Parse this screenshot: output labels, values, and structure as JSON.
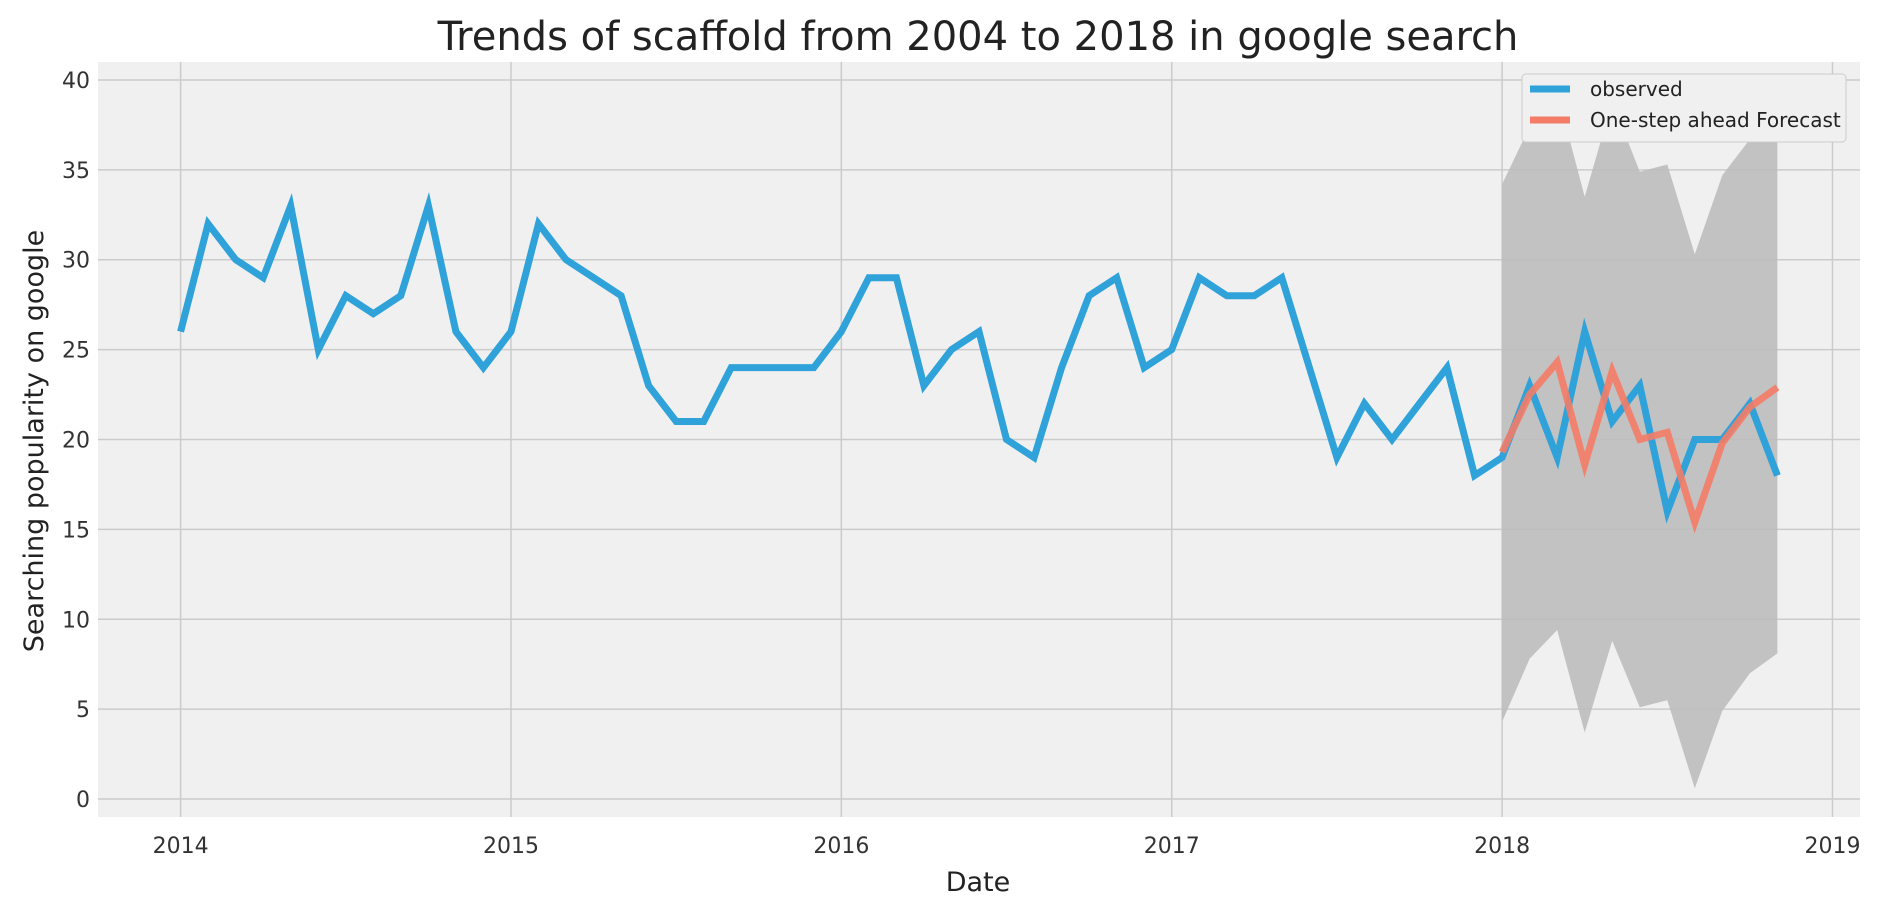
{
  "chart_data": {
    "type": "line",
    "title": "Trends of scaffold from 2004 to 2018 in google search",
    "xlabel": "Date",
    "ylabel": "Searching popularity on google",
    "xlim": [
      "2013-10",
      "2019-02"
    ],
    "ylim": [
      -1,
      41
    ],
    "x_ticks": [
      "2014",
      "2015",
      "2016",
      "2017",
      "2018",
      "2019"
    ],
    "y_ticks": [
      0,
      5,
      10,
      15,
      20,
      25,
      30,
      35,
      40
    ],
    "grid": true,
    "legend_position": "top-right",
    "colors": {
      "observed": "#30a2da",
      "forecast": "#f47c67",
      "confidence": "#bdbdbd",
      "background": "#f0f0f0",
      "grid": "#cbcbcb"
    },
    "series": [
      {
        "name": "observed",
        "x": [
          "2014-01",
          "2014-02",
          "2014-03",
          "2014-04",
          "2014-05",
          "2014-06",
          "2014-07",
          "2014-08",
          "2014-09",
          "2014-10",
          "2014-11",
          "2014-12",
          "2015-01",
          "2015-02",
          "2015-03",
          "2015-04",
          "2015-05",
          "2015-06",
          "2015-07",
          "2015-08",
          "2015-09",
          "2015-10",
          "2015-11",
          "2015-12",
          "2016-01",
          "2016-02",
          "2016-03",
          "2016-04",
          "2016-05",
          "2016-06",
          "2016-07",
          "2016-08",
          "2016-09",
          "2016-10",
          "2016-11",
          "2016-12",
          "2017-01",
          "2017-02",
          "2017-03",
          "2017-04",
          "2017-05",
          "2017-06",
          "2017-07",
          "2017-08",
          "2017-09",
          "2017-10",
          "2017-11",
          "2017-12",
          "2018-01",
          "2018-02",
          "2018-03",
          "2018-04",
          "2018-05",
          "2018-06",
          "2018-07",
          "2018-08",
          "2018-09",
          "2018-10",
          "2018-11"
        ],
        "values": [
          26,
          32,
          30,
          29,
          33,
          25,
          28,
          27,
          28,
          33,
          26,
          24,
          26,
          32,
          30,
          29,
          28,
          23,
          21,
          21,
          24,
          24,
          24,
          24,
          26,
          29,
          29,
          23,
          25,
          26,
          20,
          19,
          24,
          28,
          29,
          24,
          25,
          29,
          28,
          28,
          29,
          24,
          19,
          22,
          20,
          22,
          24,
          18,
          19,
          23,
          19,
          26,
          21,
          23,
          16,
          20,
          20,
          22,
          18
        ]
      },
      {
        "name": "One-step ahead Forecast",
        "x": [
          "2018-01",
          "2018-02",
          "2018-03",
          "2018-04",
          "2018-05",
          "2018-06",
          "2018-07",
          "2018-08",
          "2018-09",
          "2018-10",
          "2018-11"
        ],
        "values": [
          19.3,
          22.5,
          24.3,
          18.6,
          23.8,
          20.0,
          20.4,
          15.4,
          19.8,
          21.8,
          22.9
        ],
        "lower": [
          4.3,
          7.8,
          9.4,
          3.7,
          8.8,
          5.1,
          5.5,
          0.6,
          4.9,
          7.0,
          8.1
        ],
        "upper": [
          34.2,
          37.4,
          39.3,
          33.5,
          38.8,
          34.9,
          35.3,
          30.3,
          34.7,
          36.7,
          37.8
        ]
      }
    ]
  }
}
